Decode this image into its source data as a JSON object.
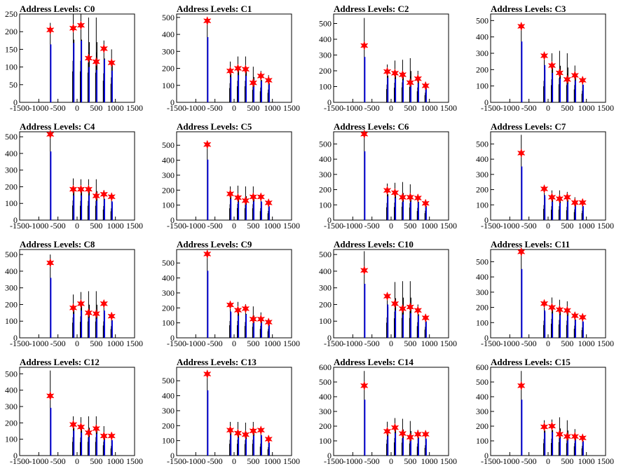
{
  "figure": {
    "title_prefix": "Address Levels: "
  },
  "chart_data": [
    {
      "type": "bar",
      "title": "Address Levels: C0",
      "xlim": [
        -1500,
        1500
      ],
      "ylim": [
        0,
        250
      ],
      "yticks": [
        0,
        50,
        100,
        150,
        200,
        250
      ],
      "xticks": [
        -1500,
        -1000,
        -500,
        0,
        500,
        1000,
        1500
      ],
      "peaks_x": [
        -700,
        -100,
        100,
        300,
        500,
        700,
        900
      ],
      "peaks_y": [
        205,
        210,
        218,
        125,
        115,
        152,
        112
      ],
      "line_heights": [
        225,
        250,
        250,
        240,
        240,
        175,
        150
      ],
      "colors": {
        "line": "#000000",
        "fit": "#0000ff",
        "marker": "#ff0000"
      }
    },
    {
      "type": "bar",
      "title": "Address Levels: C1",
      "xlim": [
        -1500,
        1500
      ],
      "ylim": [
        0,
        520
      ],
      "yticks": [
        0,
        100,
        200,
        300,
        400,
        500
      ],
      "xticks": [
        -1500,
        -1000,
        -500,
        0,
        500,
        1000,
        1500
      ],
      "peaks_x": [
        -700,
        -100,
        100,
        300,
        500,
        700,
        900
      ],
      "peaks_y": [
        480,
        185,
        200,
        195,
        115,
        155,
        130
      ],
      "line_heights": [
        470,
        240,
        270,
        270,
        210,
        185,
        160
      ],
      "colors": {
        "line": "#000000",
        "fit": "#0000ff",
        "marker": "#ff0000"
      }
    },
    {
      "type": "bar",
      "title": "Address Levels: C2",
      "xlim": [
        -1500,
        1500
      ],
      "ylim": [
        0,
        560
      ],
      "yticks": [
        0,
        100,
        200,
        300,
        400,
        500
      ],
      "xticks": [
        -1500,
        -1000,
        -500,
        0,
        500,
        1000,
        1500
      ],
      "peaks_x": [
        -700,
        -100,
        100,
        300,
        500,
        700,
        900
      ],
      "peaks_y": [
        360,
        195,
        185,
        175,
        125,
        150,
        105
      ],
      "line_heights": [
        535,
        240,
        265,
        270,
        280,
        200,
        130
      ],
      "colors": {
        "line": "#000000",
        "fit": "#0000ff",
        "marker": "#ff0000"
      }
    },
    {
      "type": "bar",
      "title": "Address Levels: C3",
      "xlim": [
        -1500,
        1500
      ],
      "ylim": [
        0,
        540
      ],
      "yticks": [
        0,
        100,
        200,
        300,
        400,
        500
      ],
      "xticks": [
        -1500,
        -1000,
        -500,
        0,
        500,
        1000,
        1500
      ],
      "peaks_x": [
        -700,
        -100,
        100,
        300,
        500,
        700,
        900
      ],
      "peaks_y": [
        465,
        285,
        225,
        180,
        140,
        165,
        135
      ],
      "line_heights": [
        450,
        280,
        300,
        315,
        300,
        225,
        150
      ],
      "colors": {
        "line": "#000000",
        "fit": "#0000ff",
        "marker": "#ff0000"
      }
    },
    {
      "type": "bar",
      "title": "Address Levels: C4",
      "xlim": [
        -1500,
        1500
      ],
      "ylim": [
        0,
        530
      ],
      "yticks": [
        0,
        100,
        200,
        300,
        400,
        500
      ],
      "xticks": [
        -1500,
        -1000,
        -500,
        0,
        500,
        1000,
        1500
      ],
      "peaks_x": [
        -700,
        -100,
        100,
        300,
        500,
        700,
        900
      ],
      "peaks_y": [
        515,
        185,
        185,
        185,
        145,
        155,
        140
      ],
      "line_heights": [
        500,
        250,
        245,
        245,
        245,
        180,
        150
      ],
      "colors": {
        "line": "#000000",
        "fit": "#0000ff",
        "marker": "#ff0000"
      }
    },
    {
      "type": "bar",
      "title": "Address Levels: C5",
      "xlim": [
        -1500,
        1500
      ],
      "ylim": [
        0,
        590
      ],
      "yticks": [
        0,
        100,
        200,
        300,
        400,
        500
      ],
      "xticks": [
        -1500,
        -1000,
        -500,
        0,
        500,
        1000,
        1500
      ],
      "peaks_x": [
        -700,
        -100,
        100,
        300,
        500,
        700,
        900
      ],
      "peaks_y": [
        505,
        175,
        150,
        130,
        155,
        155,
        115
      ],
      "line_heights": [
        490,
        225,
        230,
        225,
        225,
        170,
        130
      ],
      "colors": {
        "line": "#000000",
        "fit": "#0000ff",
        "marker": "#ff0000"
      }
    },
    {
      "type": "bar",
      "title": "Address Levels: C6",
      "xlim": [
        -1500,
        1500
      ],
      "ylim": [
        0,
        580
      ],
      "yticks": [
        0,
        100,
        200,
        300,
        400,
        500
      ],
      "xticks": [
        -1500,
        -1000,
        -500,
        0,
        500,
        1000,
        1500
      ],
      "peaks_x": [
        -700,
        -100,
        100,
        300,
        500,
        700,
        900
      ],
      "peaks_y": [
        565,
        195,
        180,
        150,
        150,
        145,
        110
      ],
      "line_heights": [
        550,
        240,
        245,
        250,
        235,
        170,
        130
      ],
      "colors": {
        "line": "#000000",
        "fit": "#0000ff",
        "marker": "#ff0000"
      }
    },
    {
      "type": "bar",
      "title": "Address Levels: C7",
      "xlim": [
        -1500,
        1500
      ],
      "ylim": [
        0,
        580
      ],
      "yticks": [
        0,
        100,
        200,
        300,
        400,
        500
      ],
      "xticks": [
        -1500,
        -1000,
        -500,
        0,
        500,
        1000,
        1500
      ],
      "peaks_x": [
        -700,
        -100,
        100,
        300,
        500,
        700,
        900
      ],
      "peaks_y": [
        440,
        205,
        150,
        140,
        150,
        115,
        115
      ],
      "line_heights": [
        560,
        210,
        195,
        195,
        185,
        150,
        130
      ],
      "colors": {
        "line": "#000000",
        "fit": "#0000ff",
        "marker": "#ff0000"
      }
    },
    {
      "type": "bar",
      "title": "Address Levels: C8",
      "xlim": [
        -1500,
        1500
      ],
      "ylim": [
        0,
        530
      ],
      "yticks": [
        0,
        100,
        200,
        300,
        400,
        500
      ],
      "xticks": [
        -1500,
        -1000,
        -500,
        0,
        500,
        1000,
        1500
      ],
      "peaks_x": [
        -700,
        -100,
        100,
        300,
        500,
        700,
        900
      ],
      "peaks_y": [
        450,
        180,
        205,
        150,
        145,
        205,
        130
      ],
      "line_heights": [
        500,
        260,
        275,
        280,
        280,
        210,
        150
      ],
      "colors": {
        "line": "#000000",
        "fit": "#0000ff",
        "marker": "#ff0000"
      }
    },
    {
      "type": "bar",
      "title": "Address Levels: C9",
      "xlim": [
        -1500,
        1500
      ],
      "ylim": [
        0,
        590
      ],
      "yticks": [
        0,
        100,
        200,
        300,
        400,
        500
      ],
      "xticks": [
        -1500,
        -1000,
        -500,
        0,
        500,
        1000,
        1500
      ],
      "peaks_x": [
        -700,
        -100,
        100,
        300,
        500,
        700,
        900
      ],
      "peaks_y": [
        560,
        220,
        185,
        195,
        125,
        125,
        105
      ],
      "line_heights": [
        545,
        240,
        240,
        225,
        210,
        170,
        125
      ],
      "colors": {
        "line": "#000000",
        "fit": "#0000ff",
        "marker": "#ff0000"
      }
    },
    {
      "type": "bar",
      "title": "Address Levels: C10",
      "xlim": [
        -1500,
        1500
      ],
      "ylim": [
        0,
        530
      ],
      "yticks": [
        0,
        100,
        200,
        300,
        400,
        500
      ],
      "xticks": [
        -1500,
        -1000,
        -500,
        0,
        500,
        1000,
        1500
      ],
      "peaks_x": [
        -700,
        -100,
        100,
        300,
        500,
        700,
        900
      ],
      "peaks_y": [
        405,
        250,
        205,
        175,
        185,
        165,
        120
      ],
      "line_heights": [
        520,
        260,
        335,
        340,
        340,
        200,
        140
      ],
      "colors": {
        "line": "#000000",
        "fit": "#0000ff",
        "marker": "#ff0000"
      }
    },
    {
      "type": "bar",
      "title": "Address Levels: C11",
      "xlim": [
        -1500,
        1500
      ],
      "ylim": [
        0,
        580
      ],
      "yticks": [
        0,
        100,
        200,
        300,
        400,
        500
      ],
      "xticks": [
        -1500,
        -1000,
        -500,
        0,
        500,
        1000,
        1500
      ],
      "peaks_x": [
        -700,
        -100,
        100,
        300,
        500,
        700,
        900
      ],
      "peaks_y": [
        565,
        225,
        200,
        185,
        180,
        145,
        135
      ],
      "line_heights": [
        545,
        240,
        265,
        250,
        240,
        170,
        145
      ],
      "colors": {
        "line": "#000000",
        "fit": "#0000ff",
        "marker": "#ff0000"
      }
    },
    {
      "type": "bar",
      "title": "Address Levels: C12",
      "xlim": [
        -1500,
        1500
      ],
      "ylim": [
        0,
        540
      ],
      "yticks": [
        0,
        100,
        200,
        300,
        400,
        500
      ],
      "xticks": [
        -1500,
        -1000,
        -500,
        0,
        500,
        1000,
        1500
      ],
      "peaks_x": [
        -700,
        -100,
        100,
        300,
        500,
        700,
        900
      ],
      "peaks_y": [
        365,
        190,
        175,
        140,
        165,
        120,
        120
      ],
      "line_heights": [
        520,
        240,
        235,
        240,
        240,
        180,
        125
      ],
      "colors": {
        "line": "#000000",
        "fit": "#0000ff",
        "marker": "#ff0000"
      }
    },
    {
      "type": "bar",
      "title": "Address Levels: C13",
      "xlim": [
        -1500,
        1500
      ],
      "ylim": [
        0,
        590
      ],
      "yticks": [
        0,
        100,
        200,
        300,
        400,
        500
      ],
      "xticks": [
        -1500,
        -1000,
        -500,
        0,
        500,
        1000,
        1500
      ],
      "peaks_x": [
        -700,
        -100,
        100,
        300,
        500,
        700,
        900
      ],
      "peaks_y": [
        545,
        170,
        150,
        140,
        165,
        170,
        110
      ],
      "line_heights": [
        525,
        225,
        225,
        220,
        225,
        170,
        120
      ],
      "colors": {
        "line": "#000000",
        "fit": "#0000ff",
        "marker": "#ff0000"
      }
    },
    {
      "type": "bar",
      "title": "Address Levels: C14",
      "xlim": [
        -1500,
        1500
      ],
      "ylim": [
        0,
        600
      ],
      "yticks": [
        0,
        100,
        200,
        300,
        400,
        500,
        600
      ],
      "xticks": [
        -1500,
        -1000,
        -500,
        0,
        500,
        1000,
        1500
      ],
      "peaks_x": [
        -700,
        -100,
        100,
        300,
        500,
        700,
        900
      ],
      "peaks_y": [
        475,
        165,
        190,
        150,
        125,
        145,
        145
      ],
      "line_heights": [
        575,
        230,
        255,
        250,
        235,
        175,
        150
      ],
      "colors": {
        "line": "#000000",
        "fit": "#0000ff",
        "marker": "#ff0000"
      }
    },
    {
      "type": "bar",
      "title": "Address Levels: C15",
      "xlim": [
        -1500,
        1500
      ],
      "ylim": [
        0,
        600
      ],
      "yticks": [
        0,
        100,
        200,
        300,
        400,
        500,
        600
      ],
      "xticks": [
        -1500,
        -1000,
        -500,
        0,
        500,
        1000,
        1500
      ],
      "peaks_x": [
        -700,
        -100,
        100,
        300,
        500,
        700,
        900
      ],
      "peaks_y": [
        475,
        195,
        200,
        145,
        130,
        130,
        120
      ],
      "line_heights": [
        575,
        240,
        245,
        260,
        240,
        180,
        140
      ],
      "colors": {
        "line": "#000000",
        "fit": "#0000ff",
        "marker": "#ff0000"
      }
    }
  ]
}
